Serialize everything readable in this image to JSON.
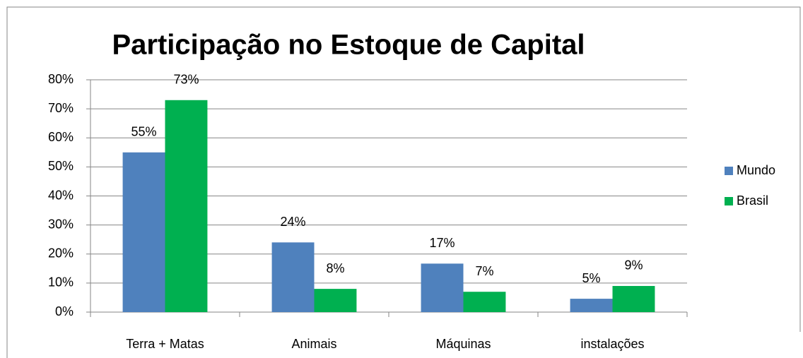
{
  "chart_data": {
    "type": "bar",
    "title": "Participação no Estoque de Capital",
    "categories": [
      "Terra + Matas",
      "Animais",
      "Máquinas",
      "instalações"
    ],
    "series": [
      {
        "name": "Mundo",
        "color": "#4f81bd",
        "values": [
          55,
          24,
          16.7,
          4.6
        ],
        "value_labels": [
          "55%",
          "24%",
          "17%",
          "5%"
        ]
      },
      {
        "name": "Brasil",
        "color": "#00b050",
        "values": [
          73,
          8,
          7,
          9
        ],
        "value_labels": [
          "73%",
          "8%",
          "7%",
          "9%"
        ]
      }
    ],
    "ylim": [
      0,
      80
    ],
    "yticks": [
      {
        "value": 0,
        "label": "0%"
      },
      {
        "value": 10,
        "label": "10%"
      },
      {
        "value": 20,
        "label": "20%"
      },
      {
        "value": 30,
        "label": "30%"
      },
      {
        "value": 40,
        "label": "40%"
      },
      {
        "value": 50,
        "label": "50%"
      },
      {
        "value": 60,
        "label": "60%"
      },
      {
        "value": 70,
        "label": "70%"
      },
      {
        "value": 80,
        "label": "80%"
      }
    ],
    "grid": true,
    "legend": "right"
  }
}
